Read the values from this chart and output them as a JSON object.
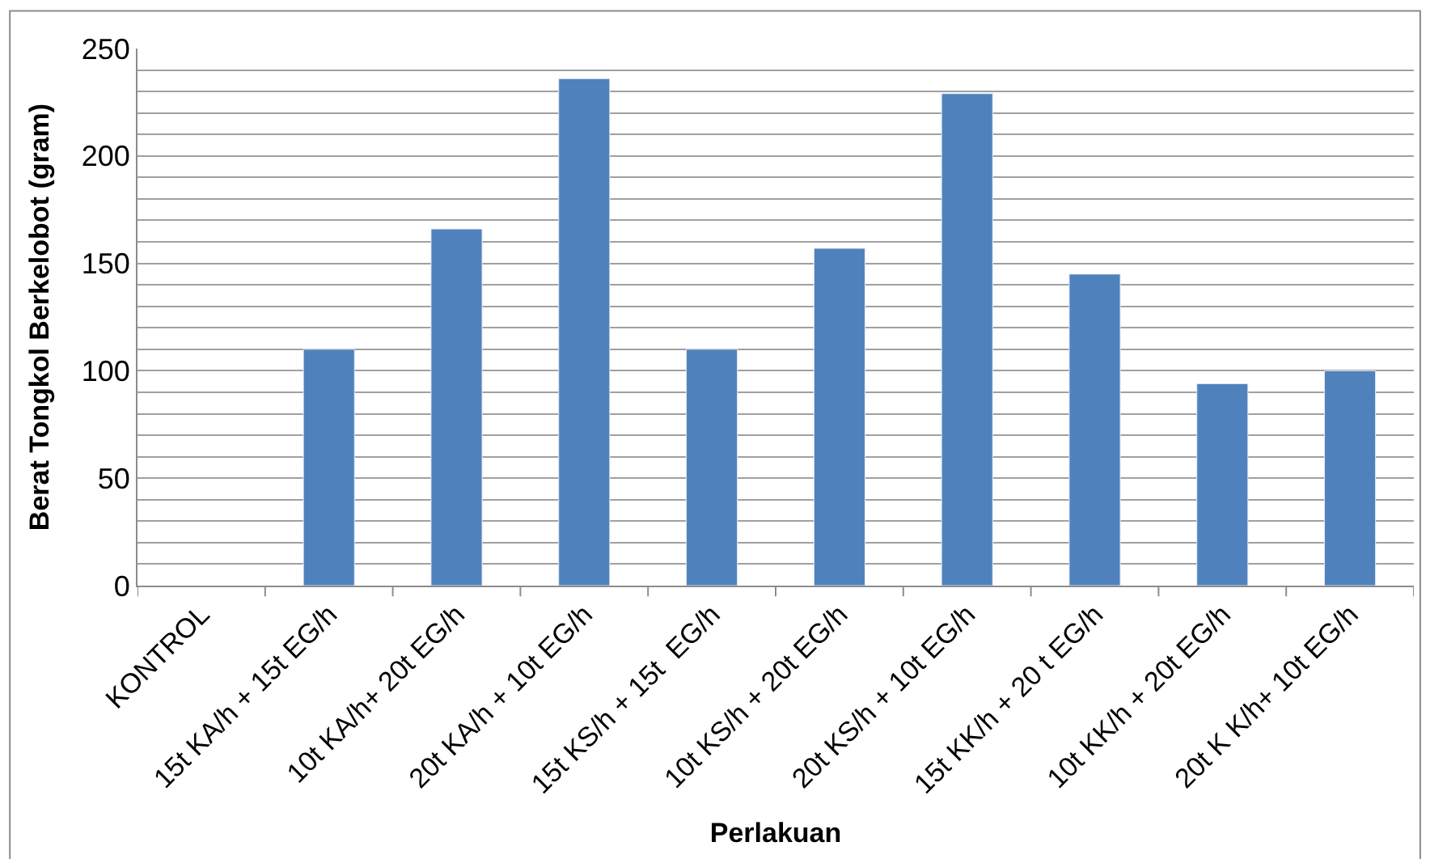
{
  "chart_data": {
    "type": "bar",
    "xlabel": "Perlakuan",
    "ylabel": "Berat Tongkol Berkelobot (gram)",
    "categories": [
      "KONTROL",
      "15t KA/h + 15t EG/h",
      "10t KA/h+ 20t EG/h",
      "20t KA/h + 10t EG/h",
      "15t KS/h + 15t  EG/h",
      "10t KS/h + 20t EG/h",
      "20t KS/h + 10t EG/h",
      "15t KK/h + 20 t EG/h",
      "10t KK/h + 20t EG/h",
      "20t K K/h+ 10t EG/h"
    ],
    "values": [
      null,
      110,
      166,
      236,
      110,
      157,
      229,
      145,
      94,
      100
    ],
    "color": "#4f81bd",
    "ylim": [
      0,
      250
    ],
    "yticks": [
      0,
      {
        "value": 10,
        "label": null
      },
      {
        "value": 20,
        "label": null
      },
      {
        "value": 30,
        "label": null
      },
      {
        "value": 40,
        "label": null
      },
      50,
      {
        "value": 60,
        "label": null
      },
      {
        "value": 70,
        "label": null
      },
      {
        "value": 80,
        "label": null
      },
      {
        "value": 90,
        "label": null
      },
      100,
      {
        "value": 110,
        "label": null
      },
      {
        "value": 120,
        "label": null
      },
      {
        "value": 130,
        "label": null
      },
      {
        "value": 140,
        "label": null
      },
      150,
      {
        "value": 160,
        "label": null
      },
      {
        "value": 170,
        "label": null
      },
      {
        "value": 180,
        "label": null
      },
      {
        "value": 190,
        "label": null
      },
      200,
      {
        "value": 210,
        "label": null
      },
      {
        "value": 220,
        "label": null
      },
      {
        "value": 230,
        "label": null
      },
      {
        "value": 240,
        "label": null
      },
      250
    ],
    "grid": "y"
  }
}
